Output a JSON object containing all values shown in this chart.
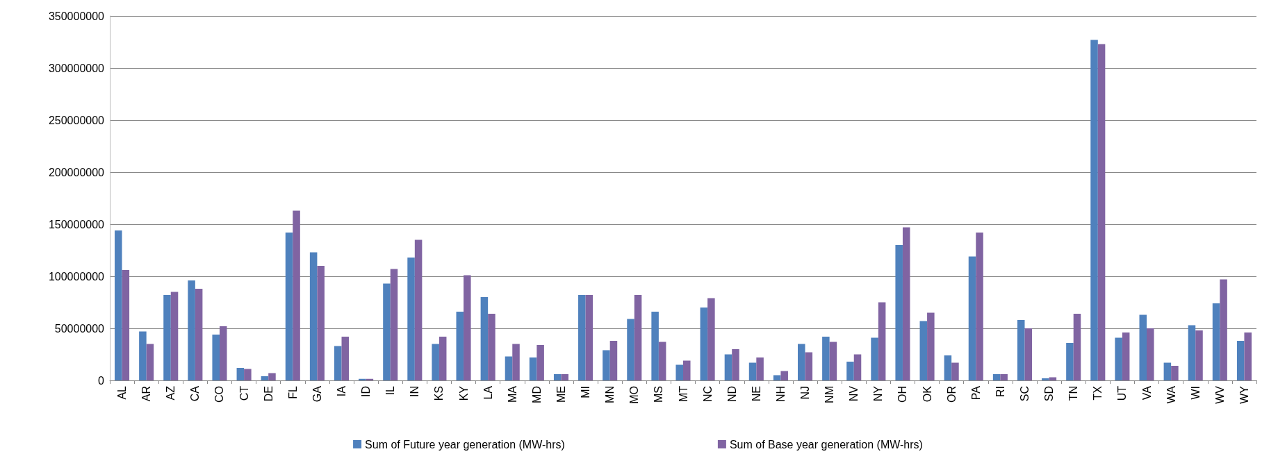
{
  "chart_data": {
    "type": "bar",
    "categories": [
      "AL",
      "AR",
      "AZ",
      "CA",
      "CO",
      "CT",
      "DE",
      "FL",
      "GA",
      "IA",
      "ID",
      "IL",
      "IN",
      "KS",
      "KY",
      "LA",
      "MA",
      "MD",
      "ME",
      "MI",
      "MN",
      "MO",
      "MS",
      "MT",
      "NC",
      "ND",
      "NE",
      "NH",
      "NJ",
      "NM",
      "NV",
      "NY",
      "OH",
      "OK",
      "OR",
      "PA",
      "RI",
      "SC",
      "SD",
      "TN",
      "TX",
      "UT",
      "VA",
      "WA",
      "WI",
      "WV",
      "WY"
    ],
    "series": [
      {
        "name": "Sum of Future year generation (MW-hrs)",
        "color": "#4f81bd",
        "values": [
          144000000,
          47000000,
          82000000,
          96000000,
          44000000,
          12000000,
          4000000,
          142000000,
          123000000,
          33000000,
          1500000,
          93000000,
          118000000,
          35000000,
          66000000,
          80000000,
          23000000,
          22000000,
          6000000,
          82000000,
          29000000,
          59000000,
          66000000,
          15000000,
          70000000,
          25000000,
          17000000,
          5000000,
          35000000,
          42000000,
          18000000,
          41000000,
          130000000,
          57000000,
          24000000,
          119000000,
          6000000,
          58000000,
          2000000,
          36000000,
          327000000,
          41000000,
          63000000,
          17000000,
          53000000,
          74000000,
          38000000
        ]
      },
      {
        "name": "Sum of Base year generation (MW-hrs)",
        "color": "#8064a2",
        "values": [
          106000000,
          35000000,
          85000000,
          88000000,
          52000000,
          11000000,
          7000000,
          163000000,
          110000000,
          42000000,
          1500000,
          107000000,
          135000000,
          42000000,
          101000000,
          64000000,
          35000000,
          34000000,
          6000000,
          82000000,
          38000000,
          82000000,
          37000000,
          19000000,
          79000000,
          30000000,
          22000000,
          9000000,
          27000000,
          37000000,
          25000000,
          75000000,
          147000000,
          65000000,
          17000000,
          142000000,
          6000000,
          50000000,
          3000000,
          64000000,
          323000000,
          46000000,
          50000000,
          14000000,
          48000000,
          97000000,
          46000000
        ]
      }
    ],
    "ylim": [
      0,
      350000000
    ],
    "yticks": [
      0,
      50000000,
      100000000,
      150000000,
      200000000,
      250000000,
      300000000,
      350000000
    ],
    "grid": "y",
    "legend": "bottom"
  }
}
